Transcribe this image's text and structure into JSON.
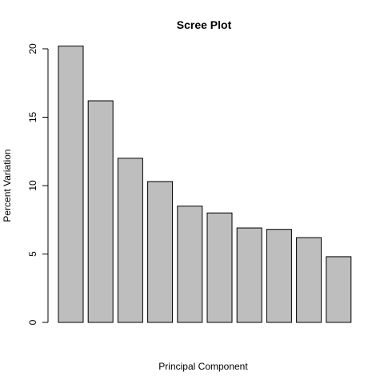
{
  "chart_data": {
    "type": "bar",
    "title": "Scree Plot",
    "xlabel": "Principal Component",
    "ylabel": "Percent Variation",
    "categories": [
      "",
      "",
      "",
      "",
      "",
      "",
      "",
      "",
      "",
      ""
    ],
    "values": [
      20.2,
      16.2,
      12.0,
      10.3,
      8.5,
      8.0,
      6.9,
      6.8,
      6.2,
      4.8
    ],
    "ylim": [
      0,
      20
    ],
    "yticks": [
      0,
      5,
      10,
      15,
      20
    ],
    "grid": false,
    "legend": "none",
    "colors": {
      "bar_fill": "#bebebe",
      "bar_stroke": "#000000"
    }
  }
}
